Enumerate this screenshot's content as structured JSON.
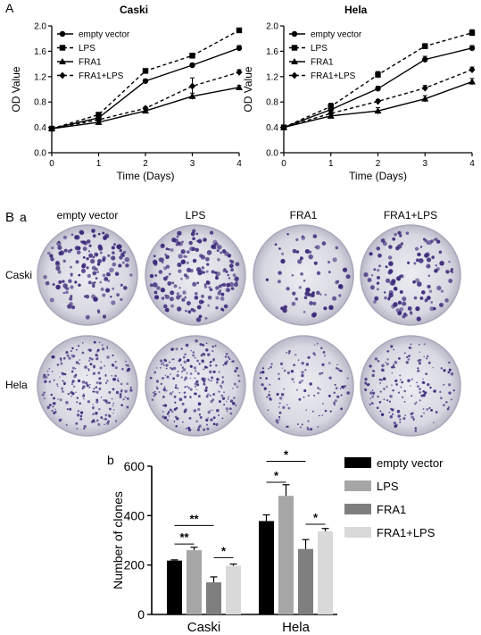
{
  "panel_labels": {
    "A": "A",
    "B": "B",
    "a": "a",
    "b": "b"
  },
  "chart_data": [
    {
      "type": "line",
      "title": "Caski",
      "xlabel": "Time (Days)",
      "ylabel": "OD Value",
      "xlim": [
        0,
        4
      ],
      "ylim": [
        0.0,
        2.0
      ],
      "xticks": [
        "0",
        "1",
        "2",
        "3",
        "4"
      ],
      "yticks": [
        "0.0",
        "0.4",
        "0.8",
        "1.2",
        "1.6",
        "2.0"
      ],
      "legend_position": "top-left",
      "x": [
        0,
        1,
        2,
        3,
        4
      ],
      "series": [
        {
          "name": "empty vector",
          "marker": "circle",
          "dash": "solid",
          "values": [
            0.38,
            0.55,
            1.13,
            1.38,
            1.65
          ],
          "err": [
            0.01,
            0.02,
            0.03,
            0.03,
            0.04
          ]
        },
        {
          "name": "LPS",
          "marker": "square",
          "dash": "dashed",
          "values": [
            0.38,
            0.6,
            1.29,
            1.53,
            1.93
          ],
          "err": [
            0.01,
            0.02,
            0.03,
            0.04,
            0.03
          ]
        },
        {
          "name": "FRA1",
          "marker": "triangle",
          "dash": "solid",
          "values": [
            0.38,
            0.48,
            0.66,
            0.89,
            1.03
          ],
          "err": [
            0.01,
            0.02,
            0.02,
            0.05,
            0.03
          ]
        },
        {
          "name": "FRA1+LPS",
          "marker": "diamond",
          "dash": "dashed",
          "values": [
            0.38,
            0.52,
            0.7,
            1.05,
            1.27
          ],
          "err": [
            0.01,
            0.02,
            0.02,
            0.13,
            0.04
          ]
        }
      ]
    },
    {
      "type": "line",
      "title": "Hela",
      "xlabel": "Time (Days)",
      "ylabel": "OD Value",
      "xlim": [
        0,
        4
      ],
      "ylim": [
        0.0,
        2.0
      ],
      "xticks": [
        "0",
        "1",
        "2",
        "3",
        "4"
      ],
      "yticks": [
        "0.0",
        "0.4",
        "0.8",
        "1.2",
        "1.6",
        "2.0"
      ],
      "legend_position": "top-left",
      "x": [
        0,
        1,
        2,
        3,
        4
      ],
      "series": [
        {
          "name": "empty vector",
          "marker": "circle",
          "dash": "solid",
          "values": [
            0.4,
            0.68,
            1.01,
            1.47,
            1.65
          ],
          "err": [
            0.02,
            0.06,
            0.04,
            0.05,
            0.04
          ]
        },
        {
          "name": "LPS",
          "marker": "square",
          "dash": "dashed",
          "values": [
            0.4,
            0.73,
            1.23,
            1.68,
            1.89
          ],
          "err": [
            0.02,
            0.05,
            0.05,
            0.04,
            0.05
          ]
        },
        {
          "name": "FRA1",
          "marker": "triangle",
          "dash": "solid",
          "values": [
            0.4,
            0.58,
            0.66,
            0.85,
            1.12
          ],
          "err": [
            0.02,
            0.04,
            0.05,
            0.05,
            0.05
          ]
        },
        {
          "name": "FRA1+LPS",
          "marker": "diamond",
          "dash": "dashed",
          "values": [
            0.4,
            0.62,
            0.81,
            1.02,
            1.31
          ],
          "err": [
            0.02,
            0.05,
            0.03,
            0.04,
            0.04
          ]
        }
      ]
    },
    {
      "type": "bar",
      "title": "",
      "xlabel": "",
      "ylabel": "Number of clones",
      "ylim": [
        0,
        600
      ],
      "yticks": [
        "0",
        "200",
        "400",
        "600"
      ],
      "categories": [
        "Caski",
        "Hela"
      ],
      "legend_position": "right",
      "series": [
        {
          "name": "empty vector",
          "color": "#000000",
          "values": [
            218,
            378
          ],
          "err": [
            3,
            25
          ]
        },
        {
          "name": "LPS",
          "color": "#a6a6a6",
          "values": [
            260,
            480
          ],
          "err": [
            12,
            45
          ]
        },
        {
          "name": "FRA1",
          "color": "#7f7f7f",
          "values": [
            130,
            265
          ],
          "err": [
            22,
            38
          ]
        },
        {
          "name": "FRA1+LPS",
          "color": "#d9d9d9",
          "values": [
            197,
            336
          ],
          "err": [
            7,
            12
          ]
        }
      ],
      "annotations": [
        {
          "label": "**",
          "group": 0,
          "from": 0,
          "to": 1,
          "y": 285
        },
        {
          "label": "**",
          "group": 0,
          "from": 0,
          "to": 2,
          "y": 360
        },
        {
          "label": "*",
          "group": 0,
          "from": 2,
          "to": 3,
          "y": 230
        },
        {
          "label": "*",
          "group": 1,
          "from": 0,
          "to": 1,
          "y": 535
        },
        {
          "label": "*",
          "group": 1,
          "from": 0,
          "to": 2,
          "y": 620
        },
        {
          "label": "*",
          "group": 1,
          "from": 2,
          "to": 3,
          "y": 365
        }
      ]
    }
  ],
  "plates": {
    "columns": [
      "empty vector",
      "LPS",
      "FRA1",
      "FRA1+LPS"
    ],
    "rows": [
      "Caski",
      "Hela"
    ],
    "density": [
      [
        0.55,
        0.65,
        0.25,
        0.45
      ],
      [
        0.85,
        0.95,
        0.45,
        0.6
      ]
    ],
    "colony_color": "#3d2a7a",
    "plate_color": "#e3e3ec"
  }
}
